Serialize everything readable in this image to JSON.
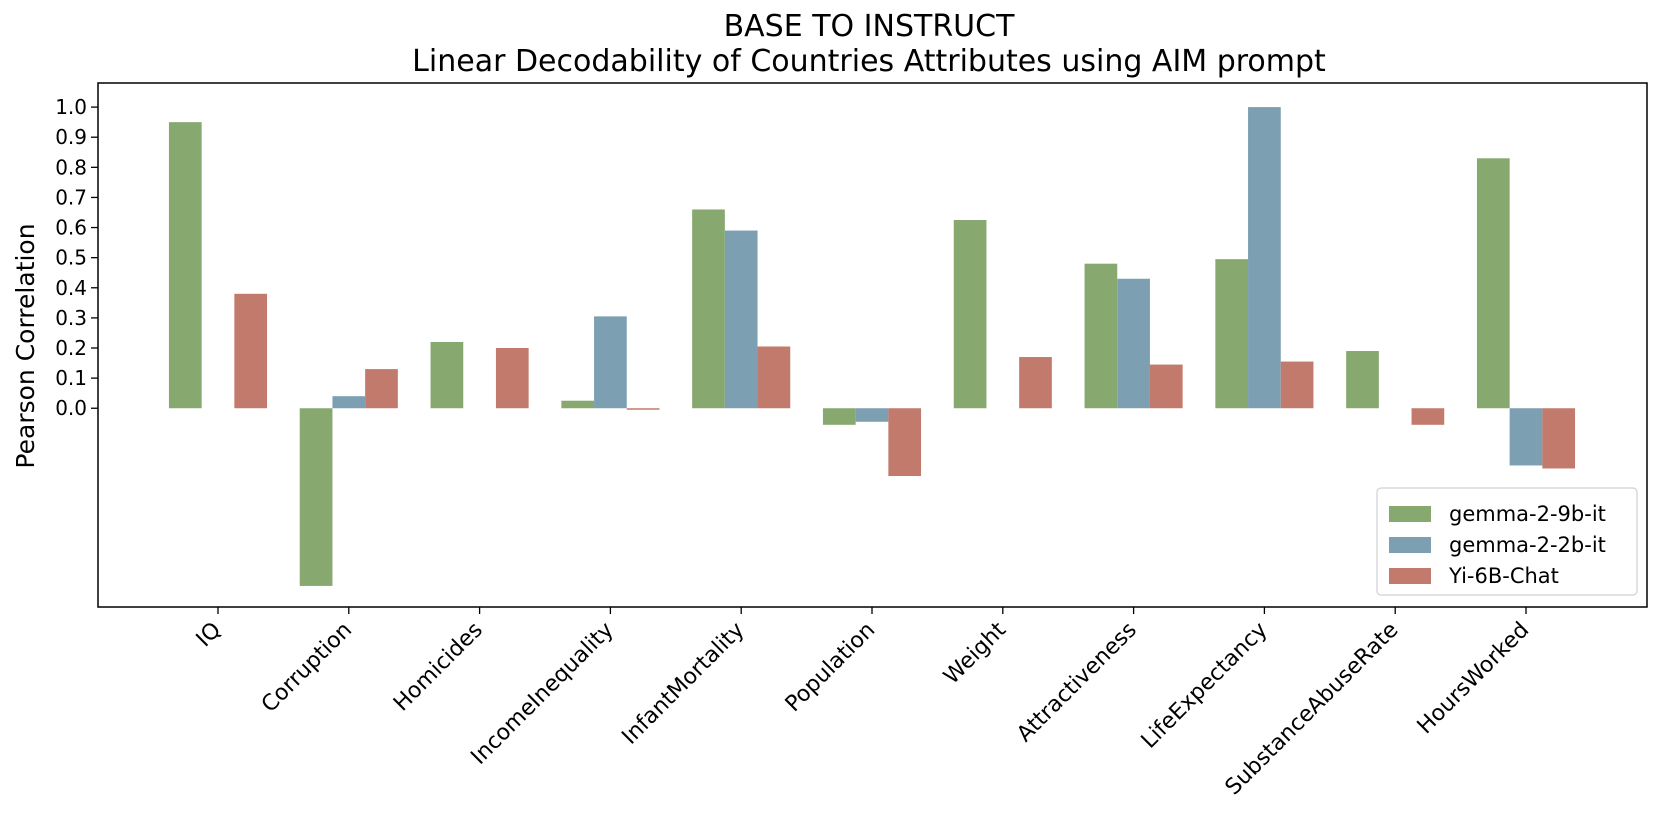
{
  "chart_data": {
    "type": "bar",
    "title": "BASE TO INSTRUCT",
    "subtitle": "Linear Decodability of Countries Attributes using AIM prompt",
    "xlabel": "",
    "ylabel": "Pearson Correlation",
    "ylim": [
      -0.66,
      1.08
    ],
    "yticks": [
      "0.0",
      "0.1",
      "0.2",
      "0.3",
      "0.4",
      "0.5",
      "0.6",
      "0.7",
      "0.8",
      "0.9",
      "1.0"
    ],
    "grid": false,
    "legend_position": "bottom-right",
    "categories": [
      "IQ",
      "Corruption",
      "Homicides",
      "IncomeInequality",
      "InfantMortality",
      "Population",
      "Weight",
      "Attractiveness",
      "LifeExpectancy",
      "SubstanceAbuseRate",
      "HoursWorked"
    ],
    "series": [
      {
        "name": "gemma-2-9b-it",
        "color": "#87a96f",
        "values": [
          0.95,
          -0.59,
          0.22,
          0.025,
          0.66,
          -0.055,
          0.625,
          0.48,
          0.495,
          0.19,
          0.83
        ]
      },
      {
        "name": "gemma-2-2b-it",
        "color": "#7d9fb2",
        "values": [
          null,
          0.04,
          null,
          0.305,
          0.59,
          -0.045,
          null,
          0.43,
          1.0,
          null,
          -0.19
        ]
      },
      {
        "name": "Yi-6B-Chat",
        "color": "#c27a6c",
        "values": [
          0.38,
          0.13,
          0.2,
          -0.005,
          0.205,
          -0.225,
          0.17,
          0.145,
          0.155,
          -0.055,
          -0.2
        ]
      }
    ]
  }
}
